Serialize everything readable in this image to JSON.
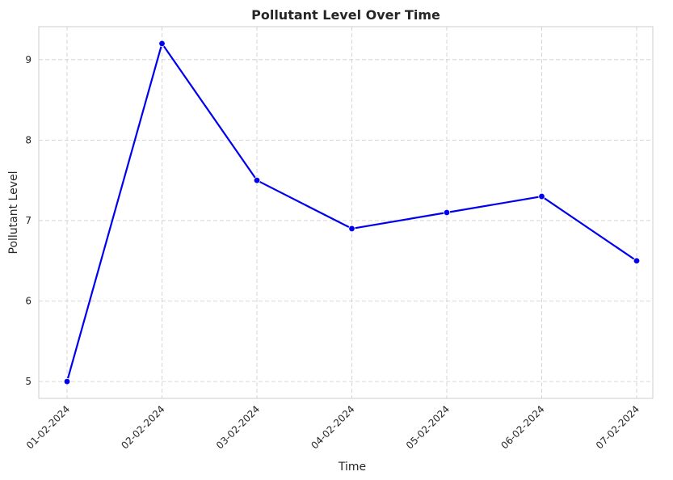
{
  "chart_data": {
    "type": "line",
    "title": "Pollutant Level Over Time",
    "xlabel": "Time",
    "ylabel": "Pollutant Level",
    "x": [
      "01-02-2024",
      "02-02-2024",
      "03-02-2024",
      "04-02-2024",
      "05-02-2024",
      "06-02-2024",
      "07-02-2024"
    ],
    "series": [
      {
        "values": [
          5.0,
          9.2,
          7.5,
          6.9,
          7.1,
          7.3,
          6.5
        ],
        "color": "#0000ee"
      }
    ],
    "yticks": [
      5,
      6,
      7,
      8,
      9
    ],
    "ylim": [
      4.79,
      9.41
    ],
    "grid": true,
    "marker": "circle"
  }
}
